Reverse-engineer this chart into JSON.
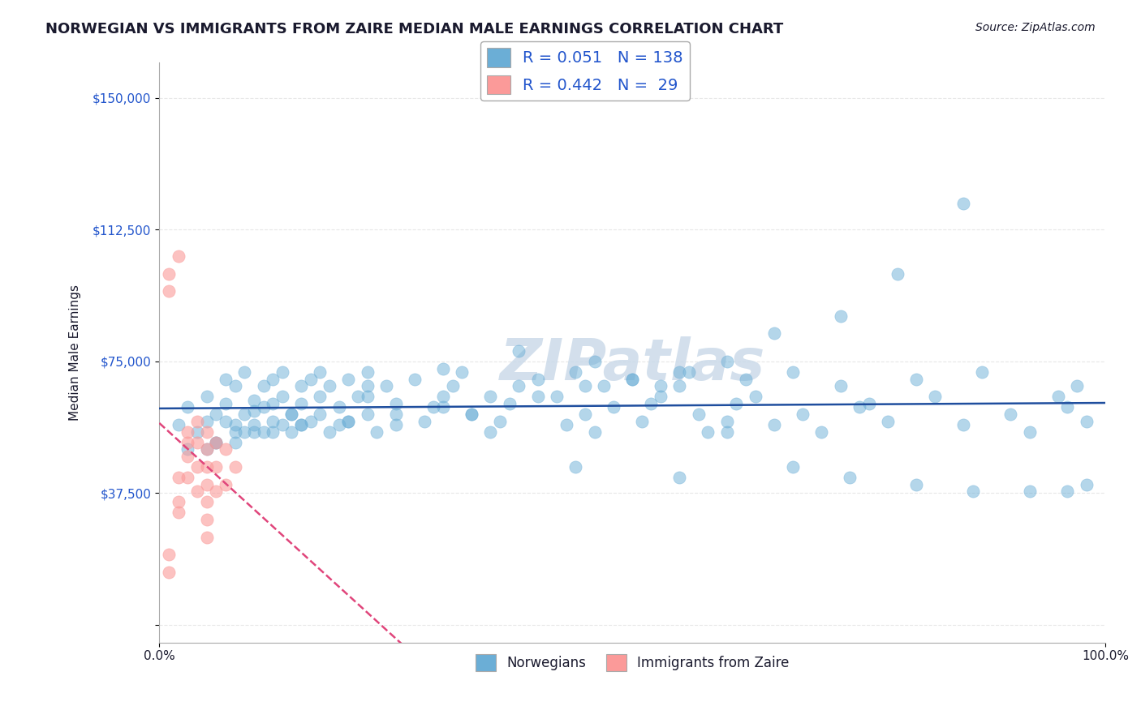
{
  "title": "NORWEGIAN VS IMMIGRANTS FROM ZAIRE MEDIAN MALE EARNINGS CORRELATION CHART",
  "source": "Source: ZipAtlas.com",
  "ylabel": "Median Male Earnings",
  "xlabel": "",
  "xlim": [
    0,
    1
  ],
  "ylim": [
    -5000,
    160000
  ],
  "yticks": [
    0,
    37500,
    75000,
    112500,
    150000
  ],
  "ytick_labels": [
    "",
    "$37,500",
    "$75,000",
    "$112,500",
    "$150,000"
  ],
  "xticks": [
    0,
    1
  ],
  "xtick_labels": [
    "0.0%",
    "100.0%"
  ],
  "legend_r1": "R = 0.051",
  "legend_n1": "N = 138",
  "legend_r2": "R = 0.442",
  "legend_n2": "N =  29",
  "legend_label1": "Norwegians",
  "legend_label2": "Immigrants from Zaire",
  "blue_color": "#6baed6",
  "pink_color": "#fb9a99",
  "line_blue": "#1f4e9e",
  "line_pink": "#e0457b",
  "text_blue": "#2255cc",
  "text_dark": "#1a1a2e",
  "watermark_color": "#c8d8e8",
  "background": "#ffffff",
  "grid_color": "#dddddd",
  "norwegians_x": [
    0.02,
    0.03,
    0.04,
    0.05,
    0.05,
    0.06,
    0.06,
    0.07,
    0.07,
    0.07,
    0.08,
    0.08,
    0.08,
    0.09,
    0.09,
    0.09,
    0.1,
    0.1,
    0.1,
    0.11,
    0.11,
    0.11,
    0.12,
    0.12,
    0.12,
    0.13,
    0.13,
    0.13,
    0.14,
    0.14,
    0.15,
    0.15,
    0.15,
    0.16,
    0.16,
    0.17,
    0.17,
    0.17,
    0.18,
    0.18,
    0.19,
    0.19,
    0.2,
    0.2,
    0.21,
    0.22,
    0.22,
    0.23,
    0.24,
    0.25,
    0.25,
    0.27,
    0.28,
    0.29,
    0.3,
    0.31,
    0.32,
    0.33,
    0.35,
    0.36,
    0.37,
    0.38,
    0.4,
    0.42,
    0.43,
    0.44,
    0.45,
    0.46,
    0.47,
    0.48,
    0.5,
    0.51,
    0.52,
    0.53,
    0.55,
    0.56,
    0.57,
    0.58,
    0.6,
    0.61,
    0.62,
    0.63,
    0.65,
    0.67,
    0.68,
    0.7,
    0.72,
    0.74,
    0.75,
    0.77,
    0.8,
    0.82,
    0.85,
    0.87,
    0.9,
    0.92,
    0.95,
    0.96,
    0.97,
    0.98,
    0.85,
    0.78,
    0.72,
    0.65,
    0.6,
    0.55,
    0.5,
    0.45,
    0.4,
    0.35,
    0.3,
    0.25,
    0.2,
    0.15,
    0.12,
    0.1,
    0.08,
    0.06,
    0.05,
    0.03,
    0.14,
    0.22,
    0.3,
    0.38,
    0.46,
    0.53,
    0.6,
    0.67,
    0.73,
    0.8,
    0.86,
    0.92,
    0.96,
    0.98,
    0.55,
    0.44,
    0.33,
    0.22
  ],
  "norwegians_y": [
    57000,
    62000,
    55000,
    58000,
    65000,
    60000,
    52000,
    70000,
    58000,
    63000,
    55000,
    68000,
    57000,
    72000,
    60000,
    55000,
    64000,
    57000,
    61000,
    68000,
    62000,
    55000,
    70000,
    58000,
    63000,
    65000,
    57000,
    72000,
    60000,
    55000,
    68000,
    63000,
    57000,
    70000,
    58000,
    72000,
    65000,
    60000,
    55000,
    68000,
    62000,
    57000,
    70000,
    58000,
    65000,
    72000,
    60000,
    55000,
    68000,
    63000,
    57000,
    70000,
    58000,
    62000,
    65000,
    68000,
    72000,
    60000,
    55000,
    58000,
    63000,
    68000,
    70000,
    65000,
    57000,
    72000,
    60000,
    55000,
    68000,
    62000,
    70000,
    58000,
    63000,
    65000,
    68000,
    72000,
    60000,
    55000,
    58000,
    63000,
    70000,
    65000,
    57000,
    72000,
    60000,
    55000,
    68000,
    62000,
    63000,
    58000,
    70000,
    65000,
    57000,
    72000,
    60000,
    55000,
    65000,
    62000,
    68000,
    58000,
    120000,
    100000,
    88000,
    83000,
    75000,
    72000,
    70000,
    68000,
    65000,
    65000,
    62000,
    60000,
    58000,
    57000,
    55000,
    55000,
    52000,
    52000,
    50000,
    50000,
    60000,
    68000,
    73000,
    78000,
    75000,
    68000,
    55000,
    45000,
    42000,
    40000,
    38000,
    38000,
    38000,
    40000,
    42000,
    45000,
    60000,
    65000
  ],
  "zaire_x": [
    0.01,
    0.01,
    0.02,
    0.02,
    0.02,
    0.03,
    0.03,
    0.03,
    0.03,
    0.04,
    0.04,
    0.04,
    0.04,
    0.05,
    0.05,
    0.05,
    0.05,
    0.05,
    0.05,
    0.05,
    0.06,
    0.06,
    0.06,
    0.07,
    0.07,
    0.08,
    0.02,
    0.01,
    0.01
  ],
  "zaire_y": [
    100000,
    95000,
    105000,
    42000,
    35000,
    55000,
    52000,
    48000,
    42000,
    58000,
    52000,
    45000,
    38000,
    55000,
    50000,
    45000,
    40000,
    35000,
    30000,
    25000,
    52000,
    45000,
    38000,
    50000,
    40000,
    45000,
    32000,
    20000,
    15000
  ]
}
